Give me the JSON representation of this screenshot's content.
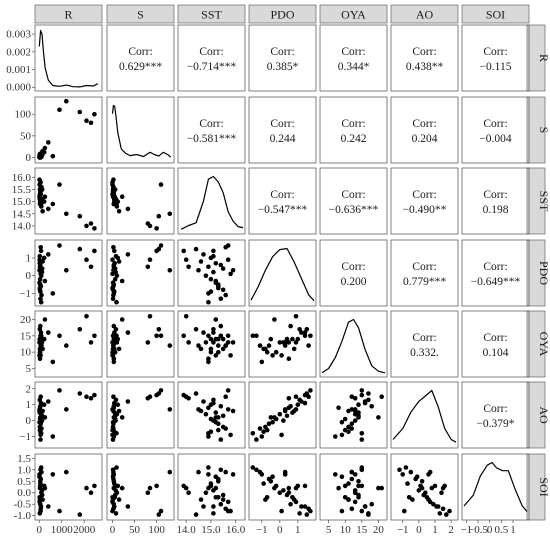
{
  "variables": [
    "R",
    "S",
    "SST",
    "PDO",
    "OYA",
    "AO",
    "SOI"
  ],
  "corr_label": "Corr:",
  "colors": {
    "strip": "#d9d9d9",
    "frame": "#4d4d4d",
    "mark": "#000000"
  },
  "chart_data": {
    "type": "scatter-matrix",
    "variables": [
      "R",
      "S",
      "SST",
      "PDO",
      "OYA",
      "AO",
      "SOI"
    ],
    "grid": false,
    "correlations": [
      {
        "row": "R",
        "col": "S",
        "text": "0.629***"
      },
      {
        "row": "R",
        "col": "SST",
        "text": "−0.714***"
      },
      {
        "row": "R",
        "col": "PDO",
        "text": "0.385*"
      },
      {
        "row": "R",
        "col": "OYA",
        "text": "0.344*"
      },
      {
        "row": "R",
        "col": "AO",
        "text": "0.438**"
      },
      {
        "row": "R",
        "col": "SOI",
        "text": "−0.115"
      },
      {
        "row": "S",
        "col": "SST",
        "text": "−0.581***"
      },
      {
        "row": "S",
        "col": "PDO",
        "text": "0.244"
      },
      {
        "row": "S",
        "col": "OYA",
        "text": "0.242"
      },
      {
        "row": "S",
        "col": "AO",
        "text": "0.204"
      },
      {
        "row": "S",
        "col": "SOI",
        "text": "−0.004"
      },
      {
        "row": "SST",
        "col": "PDO",
        "text": "−0.547***"
      },
      {
        "row": "SST",
        "col": "OYA",
        "text": "−0.636***"
      },
      {
        "row": "SST",
        "col": "AO",
        "text": "−0.490**"
      },
      {
        "row": "SST",
        "col": "SOI",
        "text": "0.198"
      },
      {
        "row": "PDO",
        "col": "OYA",
        "text": "0.200"
      },
      {
        "row": "PDO",
        "col": "AO",
        "text": "0.779***"
      },
      {
        "row": "PDO",
        "col": "SOI",
        "text": "−0.649***"
      },
      {
        "row": "OYA",
        "col": "AO",
        "text": "0.332."
      },
      {
        "row": "OYA",
        "col": "SOI",
        "text": "0.104"
      },
      {
        "row": "AO",
        "col": "SOI",
        "text": "−0.379*"
      }
    ],
    "axes": {
      "R": {
        "range": [
          -100,
          2700
        ],
        "ticks": [
          0,
          1000,
          2000
        ],
        "density_ticks": [
          0.0,
          0.001,
          0.002,
          0.003
        ],
        "density_range": [
          -0.0001,
          0.0034
        ]
      },
      "S": {
        "range": [
          -8,
          135
        ],
        "ticks": [
          0,
          50,
          100
        ]
      },
      "SST": {
        "range": [
          13.75,
          16.3
        ],
        "ticks": [
          14.0,
          15.0,
          16.0
        ],
        "tick_labels": [
          "14.0",
          "15.0",
          "16.0"
        ],
        "row_ticks": [
          14.0,
          14.5,
          15.0,
          15.5,
          16.0
        ],
        "row_tick_labels": [
          "14.0",
          "14.5",
          "15.0",
          "15.5",
          "16.0"
        ]
      },
      "PDO": {
        "range": [
          -1.6,
          1.9
        ],
        "ticks": [
          -1,
          0,
          1
        ]
      },
      "OYA": {
        "range": [
          3,
          22
        ],
        "ticks": [
          5,
          10,
          15,
          20
        ]
      },
      "AO": {
        "range": [
          -1.6,
          2.3
        ],
        "ticks": [
          -1,
          0,
          1,
          2
        ]
      },
      "SOI": {
        "range": [
          -1.1,
          1.6
        ],
        "ticks": [
          -1,
          -0.5,
          0,
          0.5,
          1
        ],
        "row_ticks": [
          -1.0,
          -0.5,
          0.0,
          0.5,
          1.0,
          1.5
        ],
        "row_tick_labels": [
          "-1.0",
          "-0.5",
          "0.0",
          "0.5",
          "1.0",
          "1.5"
        ]
      }
    },
    "densities": {
      "R": {
        "x": [
          0,
          60,
          120,
          180,
          260,
          400,
          600,
          900,
          1200,
          1500,
          1800,
          2100,
          2400,
          2600
        ],
        "y": [
          0.0023,
          0.0032,
          0.003,
          0.0021,
          0.0011,
          0.0004,
          0.0001,
          5e-05,
          0.00012,
          3e-05,
          2e-05,
          0.0001,
          7e-05,
          0.0002
        ]
      },
      "S": {
        "x": [
          0,
          2,
          5,
          8,
          12,
          20,
          30,
          40,
          55,
          70,
          85,
          95,
          105,
          115,
          125,
          132
        ],
        "y": [
          0.85,
          1.0,
          0.98,
          0.8,
          0.5,
          0.2,
          0.12,
          0.08,
          0.1,
          0.06,
          0.14,
          0.1,
          0.07,
          0.14,
          0.1,
          0.05
        ]
      },
      "SST": {
        "x": [
          13.8,
          14.1,
          14.4,
          14.7,
          14.9,
          15.1,
          15.3,
          15.5,
          15.7,
          15.9,
          16.1,
          16.3
        ],
        "y": [
          0.03,
          0.1,
          0.15,
          0.55,
          0.95,
          1.0,
          0.9,
          0.7,
          0.35,
          0.18,
          0.08,
          0.06
        ]
      },
      "PDO": {
        "x": [
          -1.6,
          -1.2,
          -0.8,
          -0.4,
          0.0,
          0.4,
          0.8,
          1.2,
          1.6,
          1.9
        ],
        "y": [
          0.05,
          0.3,
          0.6,
          0.85,
          0.98,
          1.0,
          0.75,
          0.45,
          0.15,
          0.04
        ]
      },
      "OYA": {
        "x": [
          3,
          5,
          7,
          9,
          11,
          12.5,
          14,
          16,
          18,
          20,
          22
        ],
        "y": [
          0.02,
          0.1,
          0.3,
          0.6,
          0.95,
          1.0,
          0.85,
          0.45,
          0.15,
          0.05,
          0.02
        ]
      },
      "AO": {
        "x": [
          -1.6,
          -1.0,
          -0.5,
          0.0,
          0.4,
          0.8,
          1.2,
          1.6,
          2.0,
          2.3
        ],
        "y": [
          0.1,
          0.3,
          0.6,
          0.8,
          0.9,
          1.0,
          0.7,
          0.3,
          0.1,
          0.05
        ]
      },
      "SOI": {
        "x": [
          -1.1,
          -0.7,
          -0.4,
          -0.1,
          0.1,
          0.3,
          0.55,
          0.8,
          1.1,
          1.4,
          1.6
        ],
        "y": [
          0.2,
          0.4,
          0.75,
          0.95,
          1.0,
          0.9,
          0.85,
          0.85,
          0.5,
          0.2,
          0.1
        ]
      }
    },
    "data": [
      {
        "R": 12,
        "S": 2,
        "SST": 15.9,
        "PDO": 0.3,
        "OYA": 13,
        "AO": 0.6,
        "SOI": 0.8
      },
      {
        "R": 30,
        "S": 1,
        "SST": 15.5,
        "PDO": -0.8,
        "OYA": 11,
        "AO": -0.4,
        "SOI": -0.3
      },
      {
        "R": 45,
        "S": 3,
        "SST": 15.3,
        "PDO": -0.5,
        "OYA": 14,
        "AO": 0.2,
        "SOI": 0.5
      },
      {
        "R": 60,
        "S": 0,
        "SST": 15.8,
        "PDO": 0.1,
        "OYA": 9,
        "AO": -0.9,
        "SOI": -0.8
      },
      {
        "R": 80,
        "S": 4,
        "SST": 15.1,
        "PDO": 1.4,
        "OYA": 16,
        "AO": 1.1,
        "SOI": -0.6
      },
      {
        "R": 100,
        "S": 2,
        "SST": 15.6,
        "PDO": -1.1,
        "OYA": 12,
        "AO": -0.5,
        "SOI": 0.9
      },
      {
        "R": 20,
        "S": 5,
        "SST": 15.2,
        "PDO": 0.7,
        "OYA": 14,
        "AO": 0.5,
        "SOI": -0.2
      },
      {
        "R": 40,
        "S": 6,
        "SST": 15.0,
        "PDO": -0.2,
        "OYA": 10,
        "AO": 0.1,
        "SOI": 0.3
      },
      {
        "R": 55,
        "S": 1,
        "SST": 15.4,
        "PDO": -1.3,
        "OYA": 15,
        "AO": -1.2,
        "SOI": 1.0
      },
      {
        "R": 15,
        "S": 0,
        "SST": 15.7,
        "PDO": 0.9,
        "OYA": 13,
        "AO": 0.7,
        "SOI": -0.4
      },
      {
        "R": 35,
        "S": 3,
        "SST": 14.9,
        "PDO": 0.5,
        "OYA": 8,
        "AO": 0.8,
        "SOI": 0.2
      },
      {
        "R": 70,
        "S": 2,
        "SST": 15.3,
        "PDO": -0.6,
        "OYA": 12,
        "AO": -0.2,
        "SOI": 0.6
      },
      {
        "R": 25,
        "S": 8,
        "SST": 15.1,
        "PDO": 1.1,
        "OYA": 17,
        "AO": 1.3,
        "SOI": -0.9
      },
      {
        "R": 90,
        "S": 10,
        "SST": 14.8,
        "PDO": 0.0,
        "OYA": 13,
        "AO": 0.4,
        "SOI": 0.0
      },
      {
        "R": 50,
        "S": 4,
        "SST": 15.0,
        "PDO": -0.9,
        "OYA": 11,
        "AO": -0.7,
        "SOI": 0.4
      },
      {
        "R": 130,
        "S": 6,
        "SST": 15.5,
        "PDO": 0.4,
        "OYA": 14,
        "AO": 0.3,
        "SOI": -0.1
      },
      {
        "R": 10,
        "S": 1,
        "SST": 15.2,
        "PDO": -0.4,
        "OYA": 9,
        "AO": -0.1,
        "SOI": 0.7
      },
      {
        "R": 65,
        "S": 2,
        "SST": 15.6,
        "PDO": 1.6,
        "OYA": 12,
        "AO": 1.5,
        "SOI": -0.7
      },
      {
        "R": 85,
        "S": 9,
        "SST": 14.9,
        "PDO": -1.5,
        "OYA": 15,
        "AO": -0.8,
        "SOI": 1.1
      },
      {
        "R": 45,
        "S": 3,
        "SST": 15.4,
        "PDO": 0.6,
        "OYA": 18,
        "AO": 0.9,
        "SOI": -0.5
      },
      {
        "R": 120,
        "S": 7,
        "SST": 15.1,
        "PDO": 0.2,
        "OYA": 13,
        "AO": 0.0,
        "SOI": 0.1
      },
      {
        "R": 30,
        "S": 0,
        "SST": 15.3,
        "PDO": -0.7,
        "OYA": 10,
        "AO": -0.6,
        "SOI": -0.2
      },
      {
        "R": 220,
        "S": 12,
        "SST": 15.0,
        "PDO": 1.0,
        "OYA": 14,
        "AO": 1.0,
        "SOI": 0.3
      },
      {
        "R": 150,
        "S": 15,
        "SST": 14.6,
        "PDO": 0.8,
        "OYA": 11,
        "AO": 0.6,
        "SOI": -0.3
      },
      {
        "R": 250,
        "S": 22,
        "SST": 15.2,
        "PDO": -0.3,
        "OYA": 20,
        "AO": 0.2,
        "SOI": 0.2
      },
      {
        "R": 400,
        "S": 35,
        "SST": 14.7,
        "PDO": 1.2,
        "OYA": 16,
        "AO": 1.2,
        "SOI": -0.6
      },
      {
        "R": 600,
        "S": 3,
        "SST": 14.9,
        "PDO": -1.0,
        "OYA": 7,
        "AO": -1.0,
        "SOI": 0.8
      },
      {
        "R": 900,
        "S": 110,
        "SST": 15.7,
        "PDO": 1.7,
        "OYA": 15,
        "AO": 1.9,
        "SOI": -0.8
      },
      {
        "R": 1200,
        "S": 130,
        "SST": 14.5,
        "PDO": 0.3,
        "OYA": 12,
        "AO": 0.7,
        "SOI": 0.9
      },
      {
        "R": 1800,
        "S": 105,
        "SST": 14.4,
        "PDO": 1.5,
        "OYA": 17,
        "AO": 1.7,
        "SOI": -0.95
      },
      {
        "R": 2100,
        "S": 85,
        "SST": 14.0,
        "PDO": 0.9,
        "OYA": 21,
        "AO": 1.5,
        "SOI": 0.2
      },
      {
        "R": 2300,
        "S": 80,
        "SST": 14.1,
        "PDO": 0.5,
        "OYA": 13,
        "AO": 1.4,
        "SOI": 0.0
      },
      {
        "R": 2450,
        "S": 100,
        "SST": 13.9,
        "PDO": 1.4,
        "OYA": 15,
        "AO": 1.6,
        "SOI": 0.3
      }
    ]
  }
}
